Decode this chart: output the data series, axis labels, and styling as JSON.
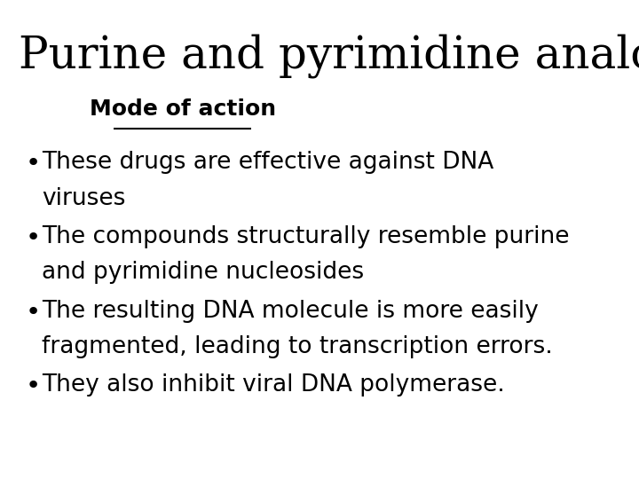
{
  "title": "Purine and pyrimidine analogues",
  "subtitle": "Mode of action",
  "bullets": [
    [
      "These drugs are effective against DNA",
      "viruses"
    ],
    [
      "The compounds structurally resemble purine",
      "and pyrimidine nucleosides"
    ],
    [
      "The resulting DNA molecule is more easily",
      "fragmented, leading to transcription errors."
    ],
    [
      "They also inhibit viral DNA polymerase."
    ]
  ],
  "background_color": "#ffffff",
  "text_color": "#000000",
  "title_fontsize": 36,
  "subtitle_fontsize": 18,
  "bullet_fontsize": 19
}
